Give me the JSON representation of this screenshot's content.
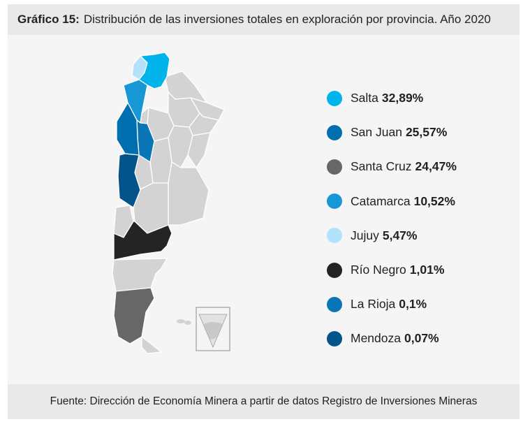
{
  "header": {
    "title_bold": "Gráfico 15:",
    "title_rest": "Distribución de las inversiones totales en exploración por provincia. Año 2020"
  },
  "legend": [
    {
      "province": "Salta",
      "value": "32,89%",
      "color": "#00b3ea"
    },
    {
      "province": "San Juan",
      "value": "25,57%",
      "color": "#006fb0"
    },
    {
      "province": "Santa Cruz",
      "value": "24,47%",
      "color": "#676767"
    },
    {
      "province": "Catamarca",
      "value": "10,52%",
      "color": "#1897d6"
    },
    {
      "province": "Jujuy",
      "value": "5,47%",
      "color": "#b3e2fa"
    },
    {
      "province": "Río Negro",
      "value": "1,01%",
      "color": "#242424"
    },
    {
      "province": "La Rioja",
      "value": "0,1%",
      "color": "#0a76b5"
    },
    {
      "province": "Mendoza",
      "value": "0,07%",
      "color": "#02548a"
    }
  ],
  "colors": {
    "other_provinces": "#d3d3d3",
    "border": "#ffffff",
    "panel": "#f5f5f5",
    "bar": "#e9e9e9"
  },
  "footer": {
    "source": "Fuente: Dirección de Economía Minera a partir de datos Registro de Inversiones Mineras"
  }
}
